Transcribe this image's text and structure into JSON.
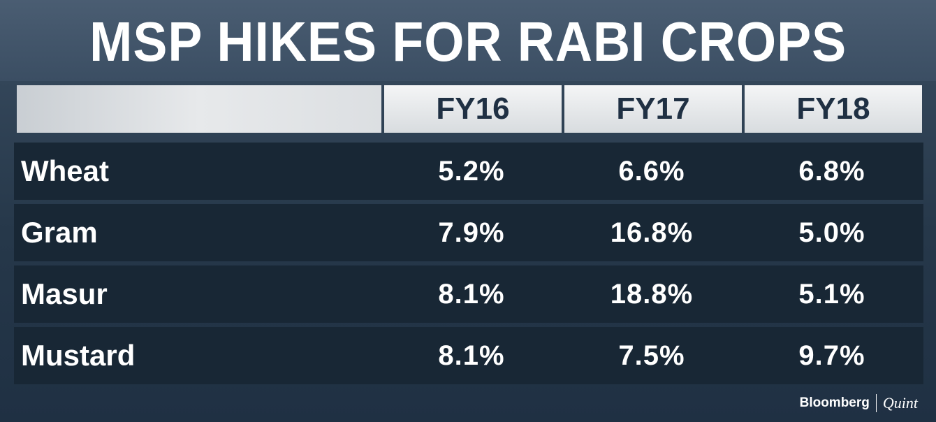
{
  "chart_data": {
    "type": "table",
    "title": "MSP HIKES FOR RABI CROPS",
    "columns": [
      "FY16",
      "FY17",
      "FY18"
    ],
    "rows": [
      {
        "label": "Wheat",
        "values": [
          "5.2%",
          "6.6%",
          "6.8%"
        ]
      },
      {
        "label": "Gram",
        "values": [
          "7.9%",
          "16.8%",
          "5.0%"
        ]
      },
      {
        "label": "Masur",
        "values": [
          "8.1%",
          "18.8%",
          "5.1%"
        ]
      },
      {
        "label": "Mustard",
        "values": [
          "8.1%",
          "7.5%",
          "9.7%"
        ]
      }
    ]
  },
  "brand": {
    "left": "Bloomberg",
    "right": "Quint"
  },
  "colors": {
    "background": "#26384a",
    "header_cell": "#e7e9eb",
    "header_text": "#1f3043",
    "row_fill": "#182735",
    "text": "#ffffff"
  }
}
